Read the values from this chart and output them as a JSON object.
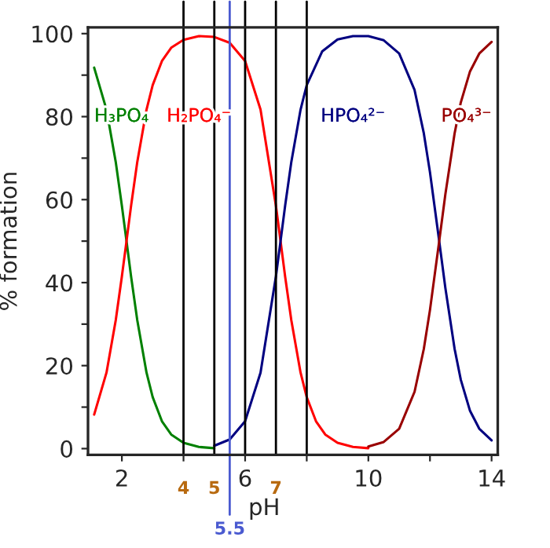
{
  "chart_data": {
    "type": "line",
    "xlabel": "pH",
    "ylabel": "% formation",
    "xlim": [
      0.9,
      14.2
    ],
    "ylim": [
      -1.5,
      101.5
    ],
    "xticks": [
      2,
      {
        "value": 4,
        "label": null
      },
      6,
      {
        "value": 8,
        "label": null
      },
      10,
      {
        "value": 12,
        "label": null
      },
      14
    ],
    "yticks": [
      0,
      {
        "value": 10,
        "label": null
      },
      20,
      {
        "value": 30,
        "label": null
      },
      40,
      {
        "value": 50,
        "label": null
      },
      60,
      {
        "value": 70,
        "label": null
      },
      80,
      {
        "value": 90,
        "label": null
      },
      100
    ],
    "grid": false,
    "marker": "none",
    "line_style": "solid",
    "series": [
      {
        "name": "H₃PO₄",
        "color": "#008000",
        "x": [
          1.1,
          1.5,
          1.8,
          2.0,
          2.15,
          2.3,
          2.5,
          2.8,
          3.0,
          3.3,
          3.6,
          4.0,
          4.5,
          5.0
        ],
        "values": [
          91.8,
          81.7,
          69.1,
          58.5,
          50,
          41.4,
          30.9,
          18.3,
          12.4,
          6.6,
          3.4,
          1.4,
          0.4,
          0.1
        ]
      },
      {
        "name": "H₂PO₄⁻",
        "color": "#ff0000",
        "x": [
          1.1,
          1.5,
          1.8,
          2.0,
          2.15,
          2.3,
          2.5,
          2.8,
          3.0,
          3.3,
          3.6,
          4.0,
          4.5,
          5.0,
          5.5,
          6.0,
          6.5,
          7.0,
          7.15,
          7.3,
          7.5,
          7.8,
          8.0,
          8.3,
          8.6,
          9.0,
          9.5,
          10.0
        ],
        "values": [
          8.2,
          18.3,
          30.9,
          41.5,
          50,
          58.6,
          69.1,
          81.7,
          87.6,
          93.4,
          96.6,
          98.5,
          99.4,
          99.2,
          97.8,
          93.4,
          81.7,
          58.5,
          50,
          41.4,
          30.9,
          18.3,
          12.4,
          6.6,
          3.4,
          1.4,
          0.4,
          0.1
        ]
      },
      {
        "name": "HPO₄²⁻",
        "color": "#000080",
        "x": [
          5.0,
          5.5,
          6.0,
          6.5,
          7.0,
          7.15,
          7.3,
          7.5,
          7.8,
          8.0,
          8.5,
          9.0,
          9.5,
          10.0,
          10.5,
          11.0,
          11.5,
          11.8,
          12.0,
          12.3,
          12.5,
          12.8,
          13.0,
          13.3,
          13.6,
          14.0
        ],
        "values": [
          0.7,
          2.2,
          6.6,
          18.3,
          41.5,
          50,
          58.6,
          69.1,
          81.7,
          87.6,
          95.7,
          98.6,
          99.4,
          99.4,
          98.4,
          95.2,
          86.4,
          76.0,
          66.6,
          50,
          38.7,
          24.0,
          16.6,
          9.1,
          4.8,
          2.0
        ]
      },
      {
        "name": "PO₄³⁻",
        "color": "#990000",
        "x": [
          10.0,
          10.5,
          11.0,
          11.5,
          11.8,
          12.0,
          12.3,
          12.5,
          12.8,
          13.0,
          13.3,
          13.6,
          14.0
        ],
        "values": [
          0.5,
          1.6,
          4.8,
          13.7,
          24.0,
          33.4,
          50,
          61.3,
          76.0,
          83.4,
          90.9,
          95.2,
          98.0
        ]
      }
    ],
    "ref_lines": [
      {
        "axis": "x",
        "value": 4,
        "label": "4",
        "color": "#000000"
      },
      {
        "axis": "x",
        "value": 5,
        "label": "5",
        "color": "#000000"
      },
      {
        "axis": "x",
        "value": 5.5,
        "label": "5.5",
        "color": "#4a5ad0"
      },
      {
        "axis": "x",
        "value": 6,
        "label": null,
        "color": "#000000"
      },
      {
        "axis": "x",
        "value": 7,
        "label": "7",
        "color": "#000000"
      },
      {
        "axis": "x",
        "value": 8,
        "label": null,
        "color": "#000000"
      }
    ]
  }
}
